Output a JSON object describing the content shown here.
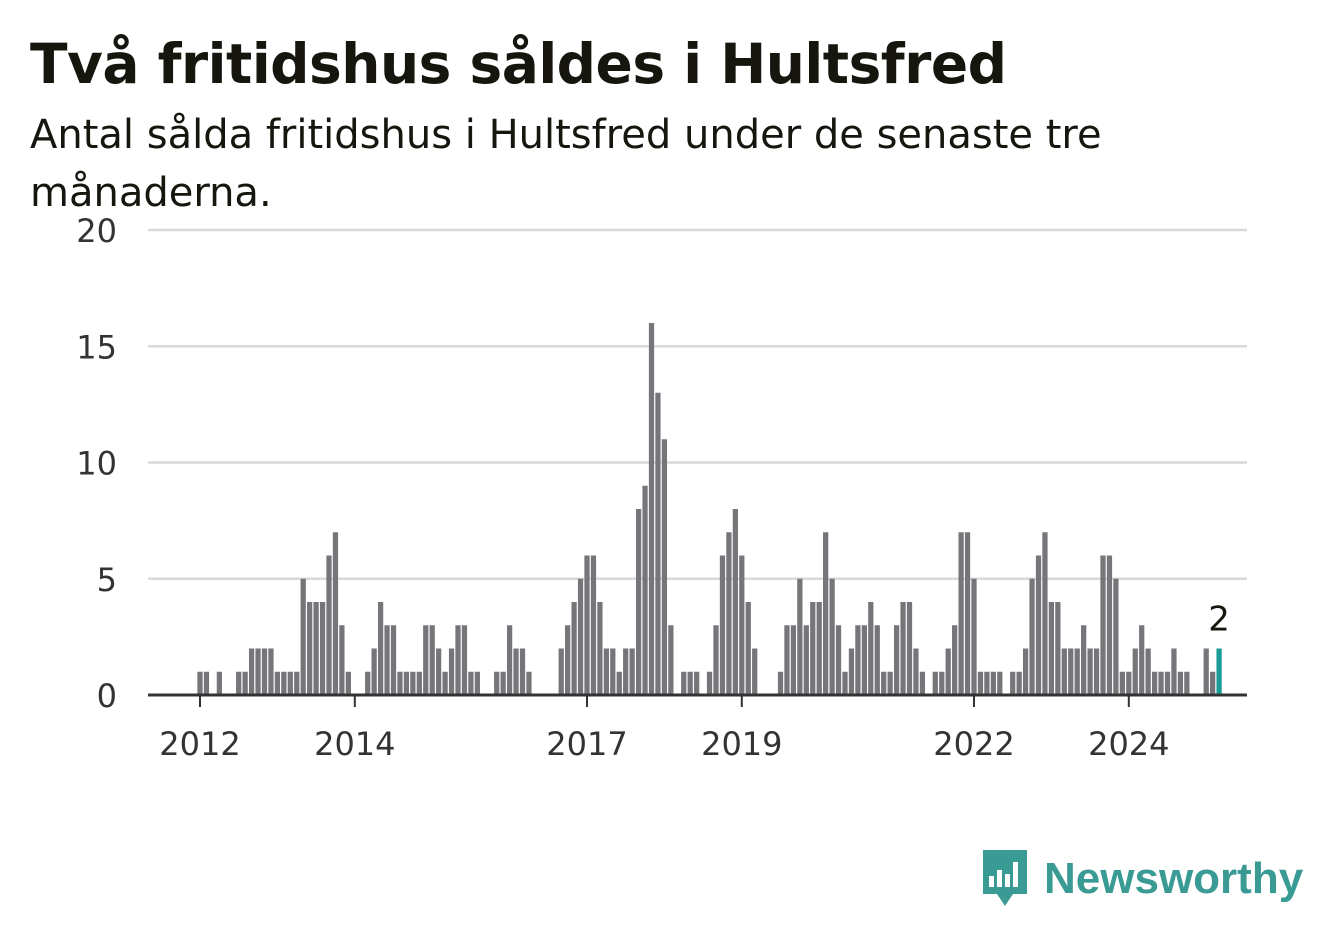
{
  "header": {
    "title": "Två fritidshus såldes i Hultsfred",
    "subtitle": "Antal sålda fritidshus i Hultsfred under de senaste tre månaderna."
  },
  "brand": {
    "name": "Newsworthy",
    "color": "#3a9a94"
  },
  "colors": {
    "bar": "#76757a",
    "highlight": "#1a9c98",
    "grid": "#d9d9d9",
    "axis": "#333333"
  },
  "chart_data": {
    "type": "bar",
    "x_start": "2011-12",
    "x_ticks": [
      "2012",
      "2014",
      "2017",
      "2019",
      "2022",
      "2024"
    ],
    "y_ticks": [
      "0",
      "5",
      "10",
      "15",
      "20"
    ],
    "ylim": [
      0,
      20
    ],
    "grid": true,
    "highlight_label": "2",
    "values": [
      0,
      1,
      1,
      0,
      1,
      0,
      0,
      1,
      1,
      2,
      2,
      2,
      2,
      1,
      1,
      1,
      1,
      5,
      4,
      4,
      4,
      6,
      7,
      3,
      1,
      0,
      0,
      1,
      2,
      4,
      3,
      3,
      1,
      1,
      1,
      1,
      3,
      3,
      2,
      1,
      2,
      3,
      3,
      1,
      1,
      0,
      0,
      1,
      1,
      3,
      2,
      2,
      1,
      0,
      0,
      0,
      0,
      2,
      3,
      4,
      5,
      6,
      6,
      4,
      2,
      2,
      1,
      2,
      2,
      8,
      9,
      16,
      13,
      11,
      3,
      0,
      1,
      1,
      1,
      0,
      1,
      3,
      6,
      7,
      8,
      6,
      4,
      2,
      0,
      0,
      0,
      1,
      3,
      3,
      5,
      3,
      4,
      4,
      7,
      5,
      3,
      1,
      2,
      3,
      3,
      4,
      3,
      1,
      1,
      3,
      4,
      4,
      2,
      1,
      0,
      1,
      1,
      2,
      3,
      7,
      7,
      5,
      1,
      1,
      1,
      1,
      0,
      1,
      1,
      2,
      5,
      6,
      7,
      4,
      4,
      2,
      2,
      2,
      3,
      2,
      2,
      6,
      6,
      5,
      1,
      1,
      2,
      3,
      2,
      1,
      1,
      1,
      2,
      1,
      1,
      0,
      0,
      2,
      1,
      2
    ]
  }
}
